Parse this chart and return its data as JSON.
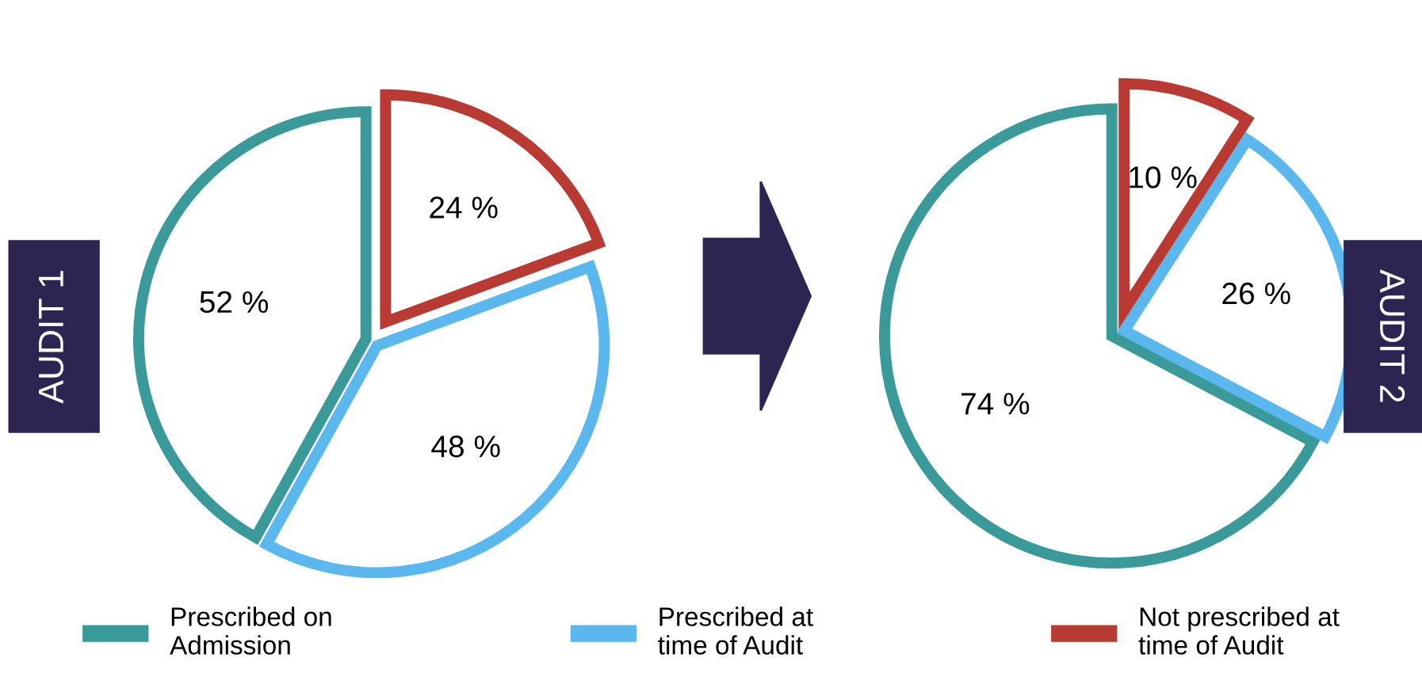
{
  "chart_data": [
    {
      "type": "pie",
      "title": "AUDIT 1",
      "categories": [
        "Prescribed on\nAdmission",
        "Prescribed at\ntime of Audit",
        "Not prescribed at\ntime of Audit"
      ],
      "values": [
        52,
        48,
        24
      ],
      "colors": [
        "#3a9a9a",
        "#5bb8ee",
        "#b83a32"
      ],
      "value_labels": [
        "52 %",
        "48 %",
        "24 %"
      ],
      "legend": "bottom"
    },
    {
      "type": "pie",
      "title": "AUDIT 2",
      "categories": [
        null,
        null,
        null
      ],
      "values": [
        74,
        26,
        10
      ],
      "colors": [
        "#3a9a9a",
        "#5bb8ee",
        "#b83a32"
      ],
      "value_labels": [
        "74 %",
        "26 %",
        "10 %"
      ]
    }
  ]
}
